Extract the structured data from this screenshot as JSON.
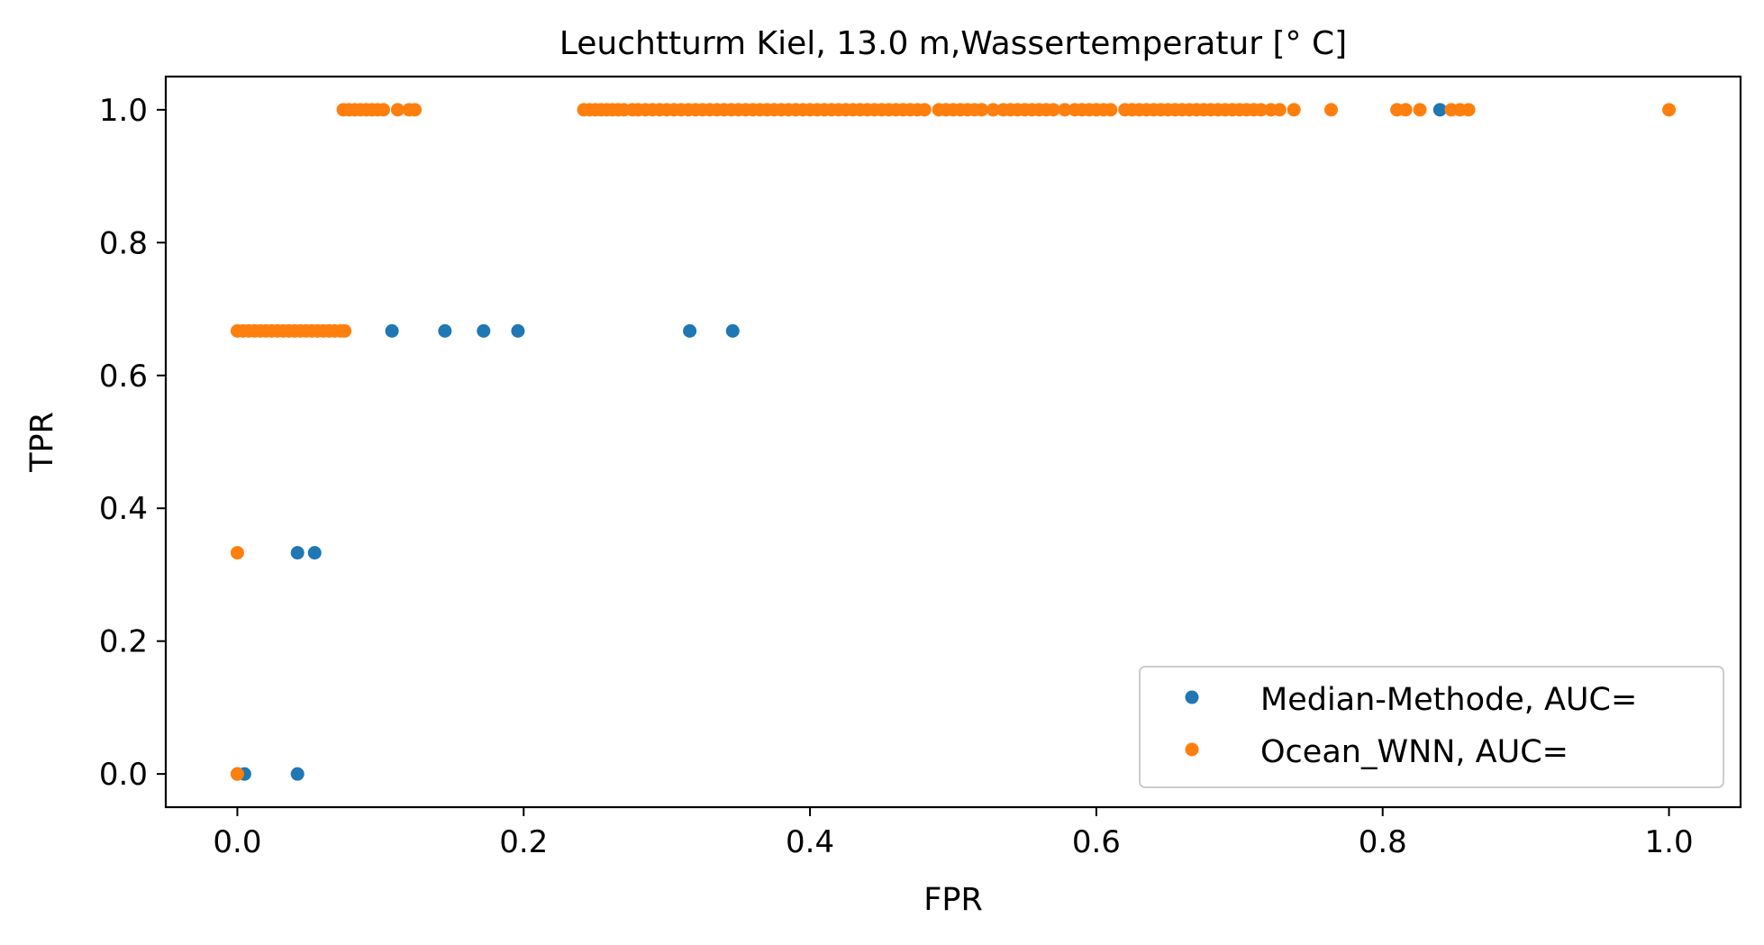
{
  "chart_data": {
    "type": "scatter",
    "title": "Leuchtturm Kiel, 13.0 m,Wassertemperatur [° C]",
    "xlabel": "FPR",
    "ylabel": "TPR",
    "xlim": [
      -0.05,
      1.05
    ],
    "ylim": [
      -0.05,
      1.05
    ],
    "xticks": [
      "0.0",
      "0.2",
      "0.4",
      "0.6",
      "0.8",
      "1.0"
    ],
    "yticks": [
      "0.0",
      "0.2",
      "0.4",
      "0.6",
      "0.8",
      "1.0"
    ],
    "xtick_values": [
      0.0,
      0.2,
      0.4,
      0.6,
      0.8,
      1.0
    ],
    "ytick_values": [
      0.0,
      0.2,
      0.4,
      0.6,
      0.8,
      1.0
    ],
    "grid": false,
    "legend_position": "lower right",
    "series": [
      {
        "name": "Median-Methode, AUC=",
        "color": "#1f77b4",
        "points": [
          [
            0.0,
            0.0
          ],
          [
            0.005,
            0.0
          ],
          [
            0.042,
            0.0
          ],
          [
            0.042,
            0.333
          ],
          [
            0.054,
            0.333
          ],
          [
            0.108,
            0.667
          ],
          [
            0.145,
            0.667
          ],
          [
            0.172,
            0.667
          ],
          [
            0.196,
            0.667
          ],
          [
            0.316,
            0.667
          ],
          [
            0.346,
            0.667
          ],
          [
            0.84,
            1.0
          ]
        ]
      },
      {
        "name": "Ocean_WNN, AUC=",
        "color": "#ff7f0e",
        "points": [
          [
            0.0,
            0.0
          ],
          [
            0.0,
            0.333
          ],
          [
            0.0,
            0.667
          ],
          [
            0.004,
            0.667
          ],
          [
            0.008,
            0.667
          ],
          [
            0.012,
            0.667
          ],
          [
            0.016,
            0.667
          ],
          [
            0.02,
            0.667
          ],
          [
            0.024,
            0.667
          ],
          [
            0.028,
            0.667
          ],
          [
            0.032,
            0.667
          ],
          [
            0.036,
            0.667
          ],
          [
            0.04,
            0.667
          ],
          [
            0.044,
            0.667
          ],
          [
            0.048,
            0.667
          ],
          [
            0.052,
            0.667
          ],
          [
            0.056,
            0.667
          ],
          [
            0.06,
            0.667
          ],
          [
            0.064,
            0.667
          ],
          [
            0.068,
            0.667
          ],
          [
            0.072,
            0.667
          ],
          [
            0.075,
            0.667
          ],
          [
            0.074,
            1.0
          ],
          [
            0.078,
            1.0
          ],
          [
            0.082,
            1.0
          ],
          [
            0.086,
            1.0
          ],
          [
            0.09,
            1.0
          ],
          [
            0.094,
            1.0
          ],
          [
            0.098,
            1.0
          ],
          [
            0.102,
            1.0
          ],
          [
            0.112,
            1.0
          ],
          [
            0.12,
            1.0
          ],
          [
            0.124,
            1.0
          ],
          [
            0.242,
            1.0
          ],
          [
            0.246,
            1.0
          ],
          [
            0.25,
            1.0
          ],
          [
            0.254,
            1.0
          ],
          [
            0.258,
            1.0
          ],
          [
            0.262,
            1.0
          ],
          [
            0.266,
            1.0
          ],
          [
            0.27,
            1.0
          ],
          [
            0.276,
            1.0
          ],
          [
            0.28,
            1.0
          ],
          [
            0.285,
            1.0
          ],
          [
            0.29,
            1.0
          ],
          [
            0.295,
            1.0
          ],
          [
            0.3,
            1.0
          ],
          [
            0.305,
            1.0
          ],
          [
            0.31,
            1.0
          ],
          [
            0.315,
            1.0
          ],
          [
            0.32,
            1.0
          ],
          [
            0.325,
            1.0
          ],
          [
            0.33,
            1.0
          ],
          [
            0.335,
            1.0
          ],
          [
            0.34,
            1.0
          ],
          [
            0.345,
            1.0
          ],
          [
            0.35,
            1.0
          ],
          [
            0.355,
            1.0
          ],
          [
            0.36,
            1.0
          ],
          [
            0.365,
            1.0
          ],
          [
            0.37,
            1.0
          ],
          [
            0.375,
            1.0
          ],
          [
            0.38,
            1.0
          ],
          [
            0.385,
            1.0
          ],
          [
            0.39,
            1.0
          ],
          [
            0.395,
            1.0
          ],
          [
            0.4,
            1.0
          ],
          [
            0.405,
            1.0
          ],
          [
            0.41,
            1.0
          ],
          [
            0.415,
            1.0
          ],
          [
            0.42,
            1.0
          ],
          [
            0.425,
            1.0
          ],
          [
            0.43,
            1.0
          ],
          [
            0.435,
            1.0
          ],
          [
            0.44,
            1.0
          ],
          [
            0.445,
            1.0
          ],
          [
            0.45,
            1.0
          ],
          [
            0.455,
            1.0
          ],
          [
            0.46,
            1.0
          ],
          [
            0.465,
            1.0
          ],
          [
            0.47,
            1.0
          ],
          [
            0.475,
            1.0
          ],
          [
            0.48,
            1.0
          ],
          [
            0.49,
            1.0
          ],
          [
            0.495,
            1.0
          ],
          [
            0.5,
            1.0
          ],
          [
            0.505,
            1.0
          ],
          [
            0.51,
            1.0
          ],
          [
            0.515,
            1.0
          ],
          [
            0.52,
            1.0
          ],
          [
            0.528,
            1.0
          ],
          [
            0.535,
            1.0
          ],
          [
            0.54,
            1.0
          ],
          [
            0.545,
            1.0
          ],
          [
            0.55,
            1.0
          ],
          [
            0.555,
            1.0
          ],
          [
            0.56,
            1.0
          ],
          [
            0.565,
            1.0
          ],
          [
            0.57,
            1.0
          ],
          [
            0.578,
            1.0
          ],
          [
            0.585,
            1.0
          ],
          [
            0.59,
            1.0
          ],
          [
            0.595,
            1.0
          ],
          [
            0.6,
            1.0
          ],
          [
            0.605,
            1.0
          ],
          [
            0.61,
            1.0
          ],
          [
            0.62,
            1.0
          ],
          [
            0.625,
            1.0
          ],
          [
            0.63,
            1.0
          ],
          [
            0.635,
            1.0
          ],
          [
            0.64,
            1.0
          ],
          [
            0.645,
            1.0
          ],
          [
            0.65,
            1.0
          ],
          [
            0.655,
            1.0
          ],
          [
            0.66,
            1.0
          ],
          [
            0.665,
            1.0
          ],
          [
            0.67,
            1.0
          ],
          [
            0.675,
            1.0
          ],
          [
            0.68,
            1.0
          ],
          [
            0.685,
            1.0
          ],
          [
            0.69,
            1.0
          ],
          [
            0.695,
            1.0
          ],
          [
            0.7,
            1.0
          ],
          [
            0.705,
            1.0
          ],
          [
            0.71,
            1.0
          ],
          [
            0.715,
            1.0
          ],
          [
            0.722,
            1.0
          ],
          [
            0.728,
            1.0
          ],
          [
            0.738,
            1.0
          ],
          [
            0.764,
            1.0
          ],
          [
            0.81,
            1.0
          ],
          [
            0.816,
            1.0
          ],
          [
            0.826,
            1.0
          ],
          [
            0.848,
            1.0
          ],
          [
            0.854,
            1.0
          ],
          [
            0.86,
            1.0
          ],
          [
            1.0,
            1.0
          ]
        ]
      }
    ]
  }
}
